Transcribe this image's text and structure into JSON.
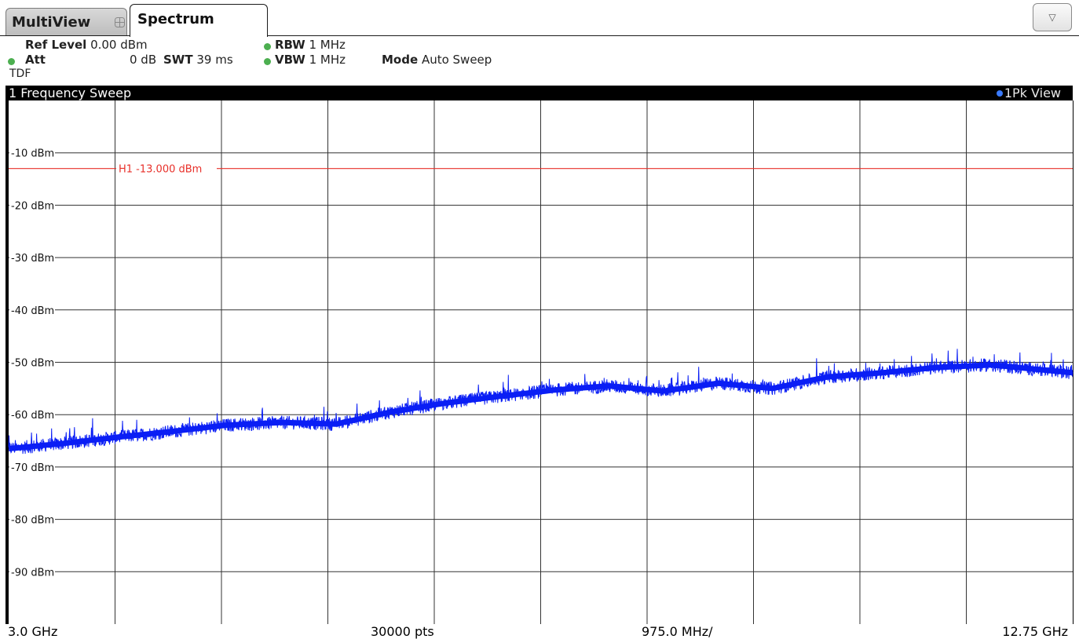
{
  "tabs": {
    "multiview_label": "MultiView",
    "spectrum_label": "Spectrum",
    "dropdown_icon": "triangle-down-icon",
    "dropdown_glyph": "▽"
  },
  "settings": {
    "ref_level_label": "Ref Level",
    "ref_level_value": "0.00 dBm",
    "att_label": "Att",
    "att_value": "0 dB",
    "swt_label": "SWT",
    "swt_value": "39 ms",
    "rbw_label": "RBW",
    "rbw_value": "1 MHz",
    "vbw_label": "VBW",
    "vbw_value": "1 MHz",
    "mode_label": "Mode",
    "mode_value": "Auto Sweep",
    "tdf_label": "TDF"
  },
  "panel": {
    "title": "1 Frequency Sweep",
    "trace_label": "1Pk View"
  },
  "footer": {
    "start": "3.0 GHz",
    "points": "30000 pts",
    "span_per_div": "975.0 MHz/",
    "stop": "12.75 GHz"
  },
  "colors": {
    "trace": "#0a1ef5",
    "limit_line": "#e8302a",
    "status_dot": "#4caf50",
    "grid": "#333333"
  },
  "chart_data": {
    "type": "line",
    "title": "1 Frequency Sweep",
    "xlim_ghz": [
      3.0,
      12.75
    ],
    "ylim_dbm": [
      0,
      -100
    ],
    "grid": true,
    "ytick_labels": [
      "-10 dBm",
      "-20 dBm",
      "-30 dBm",
      "-40 dBm",
      "-50 dBm",
      "-60 dBm",
      "-70 dBm",
      "-80 dBm",
      "-90 dBm"
    ],
    "ytick_values": [
      -10,
      -20,
      -30,
      -40,
      -50,
      -60,
      -70,
      -80,
      -90
    ],
    "hline": {
      "label": "H1",
      "value_text": "-13.000 dBm",
      "value": -13.0
    },
    "series": [
      {
        "x_ghz": [
          3.0,
          3.5,
          4.0,
          4.5,
          5.0,
          5.5,
          6.0,
          6.5,
          7.0,
          7.5,
          8.0,
          8.5,
          9.0,
          9.5,
          10.0,
          10.5,
          11.0,
          11.5,
          12.0,
          12.5,
          12.75
        ],
        "y_dbm": [
          -66.5,
          -65.5,
          -64.3,
          -63.2,
          -62.0,
          -61.5,
          -61.8,
          -59.5,
          -57.8,
          -56.5,
          -55.3,
          -54.5,
          -55.5,
          -54.0,
          -55.0,
          -52.8,
          -52.0,
          -51.0,
          -50.5,
          -51.5,
          -52.0
        ]
      }
    ]
  }
}
